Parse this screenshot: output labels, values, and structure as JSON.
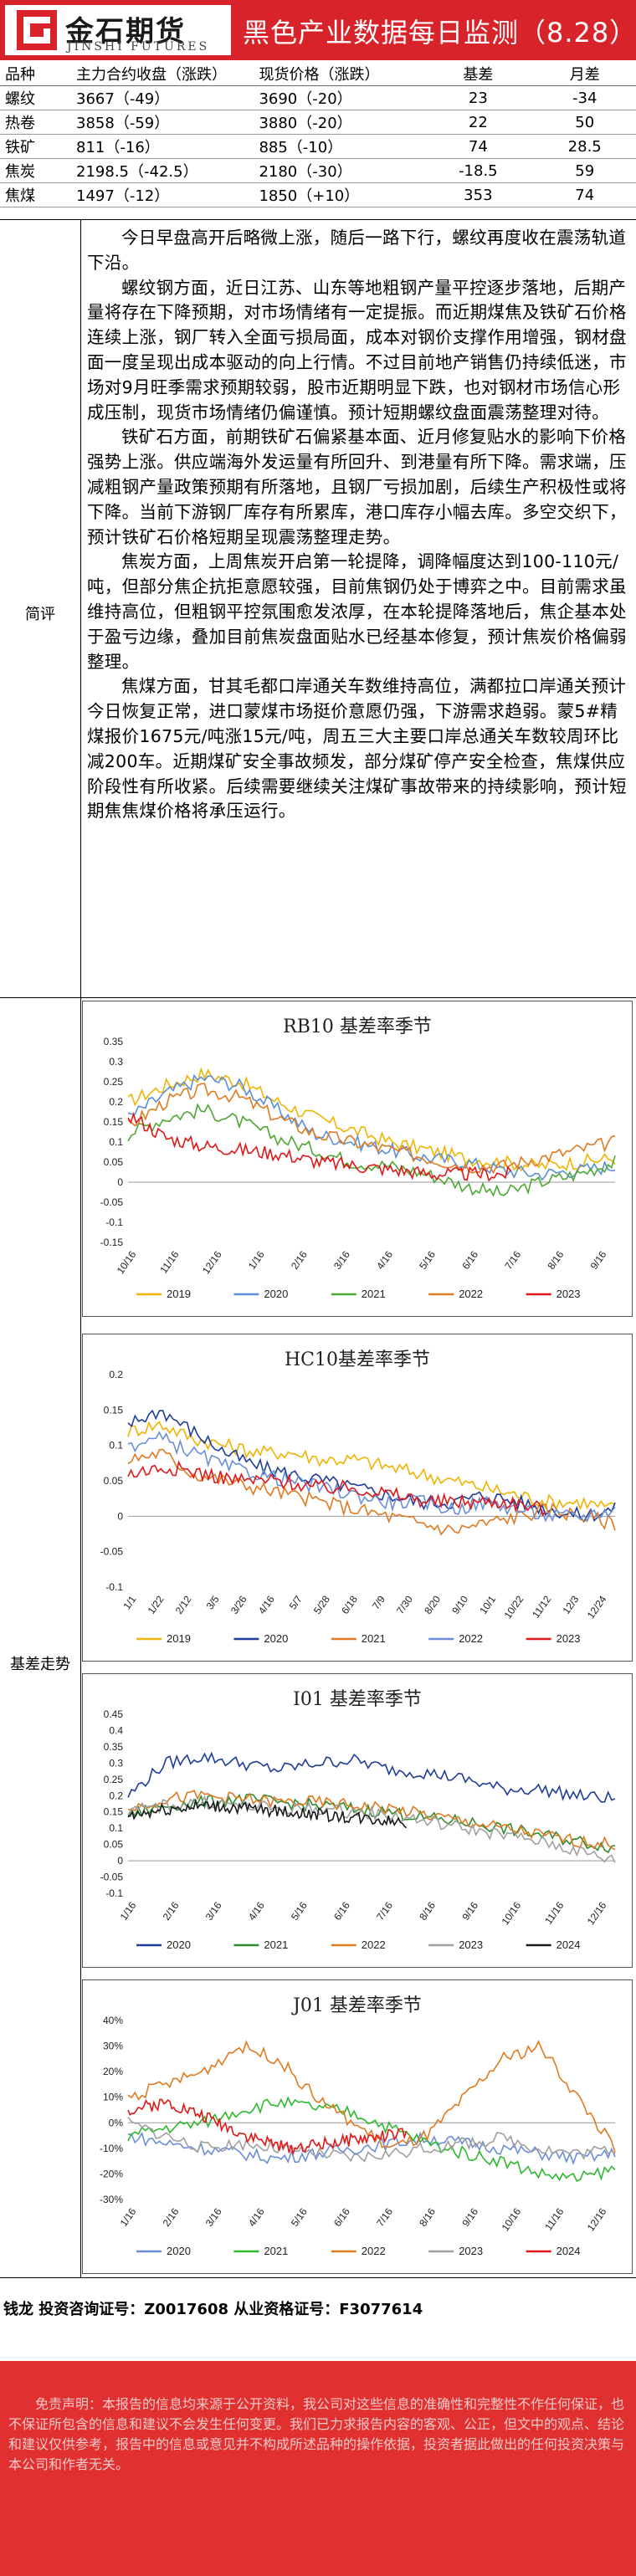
{
  "header": {
    "logo_cn": "金石期货",
    "logo_en": "JINSHI FUTURES",
    "title": "黑色产业数据每日监测（8.28）"
  },
  "quote_table": {
    "columns": [
      "品种",
      "主力合约收盘（涨跌）",
      "现货价格（涨跌）",
      "基差",
      "月差"
    ],
    "rows": [
      [
        "螺纹",
        "3667（-49）",
        "3690（-20）",
        "23",
        "-34"
      ],
      [
        "热卷",
        "3858（-59）",
        "3880（-20）",
        "22",
        "50"
      ],
      [
        "铁矿",
        "811（-16）",
        "885（-10）",
        "74",
        "28.5"
      ],
      [
        "焦炭",
        "2198.5（-42.5）",
        "2180（-30）",
        "-18.5",
        "59"
      ],
      [
        "焦煤",
        "1497（-12）",
        "1850（+10）",
        "353",
        "74"
      ]
    ]
  },
  "commentary": {
    "label": "简评",
    "paragraphs": [
      "今日早盘高开后略微上涨，随后一路下行，螺纹再度收在震荡轨道下沿。",
      "螺纹钢方面，近日江苏、山东等地粗钢产量平控逐步落地，后期产量将存在下降预期，对市场情绪有一定提振。而近期煤焦及铁矿石价格连续上涨，钢厂转入全面亏损局面，成本对钢价支撑作用增强，钢材盘面一度呈现出成本驱动的向上行情。不过目前地产销售仍持续低迷，市场对9月旺季需求预期较弱，股市近期明显下跌，也对钢材市场信心形成压制，现货市场情绪仍偏谨慎。预计短期螺纹盘面震荡整理对待。",
      "铁矿石方面，前期铁矿石偏紧基本面、近月修复贴水的影响下价格强势上涨。供应端海外发运量有所回升、到港量有所下降。需求端，压减粗钢产量政策预期有所落地，且钢厂亏损加剧，后续生产积极性或将下降。当前下游钢厂库存有所累库，港口库存小幅去库。多空交织下，预计铁矿石价格短期呈现震荡整理走势。",
      "焦炭方面，上周焦炭开启第一轮提降，调降幅度达到100-110元/吨，但部分焦企抗拒意愿较强，目前焦钢仍处于博弈之中。目前需求虽维持高位，但粗钢平控氛围愈发浓厚，在本轮提降落地后，焦企基本处于盈亏边缘，叠加目前焦炭盘面贴水已经基本修复，预计焦炭价格偏弱整理。",
      "焦煤方面，甘其毛都口岸通关车数维持高位，满都拉口岸通关预计今日恢复正常，进口蒙煤市场挺价意愿仍强，下游需求趋弱。蒙5#精煤报价1675元/吨涨15元/吨，周五三大主要口岸总通关车数较周环比减200车。近期煤矿安全事故频发，部分煤矿停产安全检查，焦煤供应阶段性有所收紧。后续需要继续关注煤矿事故带来的持续影响，预计短期焦焦煤价格将承压运行。"
    ]
  },
  "basis_section_label": "基差走势",
  "chart_data": [
    {
      "type": "line",
      "title": "RB10 基差率季节",
      "ylim": [
        -0.15,
        0.35
      ],
      "yticks": [
        "0.35",
        "0.3",
        "0.25",
        "0.2",
        "0.15",
        "0.1",
        "0.05",
        "0",
        "-0.05",
        "-0.1",
        "-0.15"
      ],
      "xticks": [
        "10/16",
        "11/16",
        "12/16",
        "1/16",
        "2/16",
        "3/16",
        "4/16",
        "5/16",
        "6/16",
        "7/16",
        "8/16",
        "9/16"
      ],
      "series": [
        {
          "name": "2019",
          "color": "#f0b400",
          "values": [
            0.2,
            0.24,
            0.27,
            0.25,
            0.2,
            0.16,
            0.13,
            0.1,
            0.08,
            0.06,
            0.05,
            0.04,
            0.05,
            0.06
          ]
        },
        {
          "name": "2020",
          "color": "#5b8fd6",
          "values": [
            0.16,
            0.22,
            0.26,
            0.24,
            0.18,
            0.12,
            0.1,
            0.08,
            0.06,
            0.05,
            0.03,
            0.02,
            0.03,
            0.04
          ]
        },
        {
          "name": "2021",
          "color": "#4ca832",
          "values": [
            0.12,
            0.16,
            0.18,
            0.15,
            0.11,
            0.08,
            0.05,
            0.04,
            0.02,
            -0.01,
            -0.03,
            0.0,
            0.02,
            0.05
          ]
        },
        {
          "name": "2022",
          "color": "#e07a20",
          "values": [
            0.14,
            0.2,
            0.23,
            0.21,
            0.16,
            0.12,
            0.1,
            0.08,
            0.06,
            0.04,
            0.04,
            0.06,
            0.08,
            0.1
          ]
        },
        {
          "name": "2023",
          "color": "#e01818",
          "values": [
            0.17,
            0.11,
            0.09,
            0.08,
            0.07,
            0.05,
            0.04,
            0.03,
            0.02,
            0.02,
            0.02
          ]
        }
      ]
    },
    {
      "type": "line",
      "title": "HC10基差率季节",
      "ylim": [
        -0.1,
        0.2
      ],
      "yticks": [
        "0.2",
        "0.15",
        "0.1",
        "0.05",
        "0",
        "-0.05",
        "-0.1"
      ],
      "xticks": [
        "1/1",
        "1/22",
        "2/12",
        "3/5",
        "3/26",
        "4/16",
        "5/7",
        "5/28",
        "6/18",
        "7/9",
        "7/30",
        "8/20",
        "9/10",
        "10/1",
        "10/22",
        "11/12",
        "12/3",
        "12/24"
      ],
      "series": [
        {
          "name": "2019",
          "color": "#f0b400",
          "values": [
            0.12,
            0.13,
            0.11,
            0.1,
            0.09,
            0.09,
            0.08,
            0.08,
            0.07,
            0.06,
            0.05,
            0.04,
            0.03,
            0.02,
            0.02,
            0.01
          ]
        },
        {
          "name": "2020",
          "color": "#1f3d99",
          "values": [
            0.13,
            0.15,
            0.12,
            0.09,
            0.07,
            0.06,
            0.05,
            0.04,
            0.03,
            0.02,
            0.02,
            0.03,
            0.02,
            0.01,
            0.0,
            0.01
          ]
        },
        {
          "name": "2021",
          "color": "#e07a20",
          "values": [
            0.08,
            0.09,
            0.06,
            0.05,
            0.04,
            0.03,
            0.02,
            0.01,
            0.0,
            -0.01,
            -0.02,
            -0.01,
            0.0,
            0.01,
            0.0,
            -0.01
          ]
        },
        {
          "name": "2022",
          "color": "#6a8fd8",
          "values": [
            0.1,
            0.11,
            0.09,
            0.07,
            0.06,
            0.05,
            0.04,
            0.03,
            0.02,
            0.02,
            0.01,
            0.02,
            0.01,
            0.0,
            0.0,
            0.01
          ]
        },
        {
          "name": "2023",
          "color": "#e01818",
          "values": [
            0.06,
            0.07,
            0.06,
            0.05,
            0.05,
            0.04,
            0.04,
            0.03,
            0.02,
            0.02,
            0.02,
            0.01
          ]
        }
      ]
    },
    {
      "type": "line",
      "title": "I01 基差率季节",
      "ylim": [
        -0.1,
        0.45
      ],
      "yticks": [
        "0.45",
        "0.4",
        "0.35",
        "0.3",
        "0.25",
        "0.2",
        "0.15",
        "0.1",
        "0.05",
        "0",
        "-0.05",
        "-0.1"
      ],
      "xticks": [
        "1/16",
        "2/16",
        "3/16",
        "4/16",
        "5/16",
        "6/16",
        "7/16",
        "8/16",
        "9/16",
        "10/16",
        "11/16",
        "12/16"
      ],
      "series": [
        {
          "name": "2020",
          "color": "#1f3d99",
          "values": [
            0.2,
            0.3,
            0.32,
            0.3,
            0.28,
            0.3,
            0.31,
            0.28,
            0.27,
            0.25,
            0.22,
            0.22,
            0.2,
            0.19
          ]
        },
        {
          "name": "2021",
          "color": "#2e8b2e",
          "values": [
            0.14,
            0.17,
            0.18,
            0.19,
            0.18,
            0.17,
            0.16,
            0.15,
            0.13,
            0.12,
            0.1,
            0.08,
            0.06,
            0.04
          ]
        },
        {
          "name": "2022",
          "color": "#e07a20",
          "values": [
            0.16,
            0.19,
            0.2,
            0.19,
            0.18,
            0.18,
            0.17,
            0.16,
            0.14,
            0.12,
            0.1,
            0.08,
            0.06,
            0.05
          ]
        },
        {
          "name": "2023",
          "color": "#a0a0a0",
          "values": [
            0.15,
            0.17,
            0.18,
            0.17,
            0.16,
            0.16,
            0.15,
            0.14,
            0.12,
            0.1,
            0.08,
            0.06,
            0.03,
            0.0
          ]
        },
        {
          "name": "2024",
          "color": "#1a1a1a",
          "values": [
            0.14,
            0.16,
            0.17,
            0.16,
            0.15,
            0.14,
            0.13,
            0.12
          ]
        }
      ]
    },
    {
      "type": "line",
      "title": "J01 基差率季节",
      "ylim": [
        -30,
        40
      ],
      "yticks": [
        "40%",
        "30%",
        "20%",
        "10%",
        "0%",
        "-10%",
        "-20%",
        "-30%"
      ],
      "xticks": [
        "1/16",
        "2/16",
        "3/16",
        "4/16",
        "5/16",
        "6/16",
        "7/16",
        "8/16",
        "9/16",
        "10/16",
        "11/16",
        "12/16"
      ],
      "series": [
        {
          "name": "2020",
          "color": "#6a8fd8",
          "values": [
            -5,
            -8,
            -10,
            -12,
            -14,
            -12,
            -10,
            -8,
            -6,
            -8,
            -10,
            -12,
            -14,
            -12
          ]
        },
        {
          "name": "2021",
          "color": "#2eb82e",
          "values": [
            -5,
            -2,
            0,
            5,
            8,
            6,
            4,
            -2,
            -8,
            -12,
            -15,
            -20,
            -22,
            -18
          ]
        },
        {
          "name": "2022",
          "color": "#e07a20",
          "values": [
            10,
            15,
            20,
            30,
            25,
            10,
            0,
            -10,
            -5,
            10,
            25,
            30,
            10,
            -10
          ]
        },
        {
          "name": "2023",
          "color": "#a0a0a0",
          "values": [
            0,
            -5,
            -10,
            -8,
            -10,
            -12,
            -14,
            -12,
            -10,
            -8,
            -6,
            -10,
            -12,
            -10
          ]
        },
        {
          "name": "2024",
          "color": "#e01818",
          "values": [
            5,
            8,
            2,
            -5,
            -10,
            -8,
            -6,
            -4
          ]
        }
      ]
    }
  ],
  "footer": {
    "analyst": "钱龙 投资咨询证号：Z0017608 从业资格证号：F3077614",
    "disclaimer": "免责声明：本报告的信息均来源于公开资料，我公司对这些信息的准确性和完整性不作任何保证，也不保证所包含的信息和建议不会发生任何变更。我们已力求报告内容的客观、公正，但文中的观点、结论和建议仅供参考，报告中的信息或意见并不构成所述品种的操作依据，投资者据此做出的任何投资决策与本公司和作者无关。"
  }
}
